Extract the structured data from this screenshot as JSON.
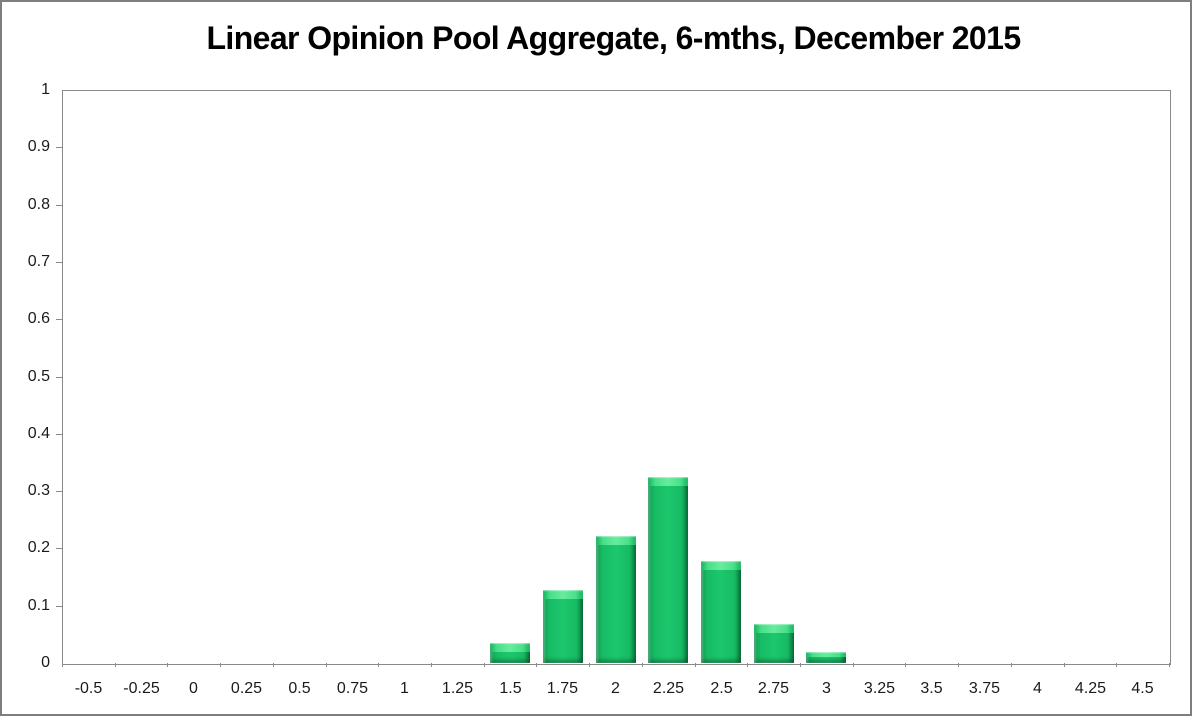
{
  "window": {
    "background": "#ffffff",
    "border_color": "#7e7e7e"
  },
  "chart_data": {
    "type": "bar",
    "title": "Linear Opinion Pool Aggregate, 6-mths, December 2015",
    "categories": [
      "-0.5",
      "-0.25",
      "0",
      "0.25",
      "0.5",
      "0.75",
      "1",
      "1.25",
      "1.5",
      "1.75",
      "2",
      "2.25",
      "2.5",
      "2.75",
      "3",
      "3.25",
      "3.5",
      "3.75",
      "4",
      "4.25",
      "4.5"
    ],
    "values": [
      0,
      0,
      0,
      0,
      0,
      0,
      0,
      0,
      0.035,
      0.128,
      0.222,
      0.325,
      0.178,
      0.068,
      0.019,
      0,
      0,
      0,
      0,
      0,
      0
    ],
    "y_ticks": [
      "0",
      "0.1",
      "0.2",
      "0.3",
      "0.4",
      "0.5",
      "0.6",
      "0.7",
      "0.8",
      "0.9",
      "1"
    ],
    "ylim": [
      0,
      1
    ],
    "xlabel": "",
    "ylabel": "",
    "grid": false,
    "legend": "none",
    "bar_color": "#12b45e",
    "bar_bevel_light": "#68ec9f",
    "bar_bevel_dark": "#0a8c47",
    "axis_color": "#8a8a8a",
    "label_color": "#1a1a1a",
    "title_color": "#000000"
  }
}
